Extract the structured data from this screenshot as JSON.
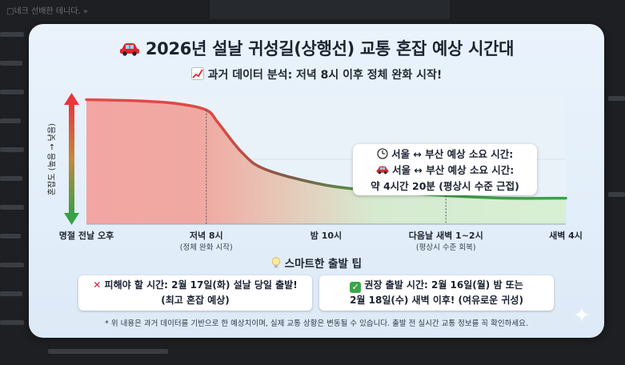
{
  "background_text": [
    "□네크 선배한 테니다. »"
  ],
  "header": {
    "title_icon": "car-icon",
    "title": "2026년 설날 귀성길(상행선) 교통 혼잡 예상 시간대",
    "subtitle_icon": "trend-chart-icon",
    "subtitle": "과거 데이터 분석: 저녁 8시 이후 정체 완화 시작!"
  },
  "chart_data": {
    "type": "area",
    "ylabel": "혼잡도 (높음 → 낮음)",
    "ylim": [
      0,
      100
    ],
    "grid": false,
    "categories": [
      "명절 전날 오후",
      "저녁 8시",
      "밤 10시",
      "다음날 새벽 1~2시",
      "새벽 4시"
    ],
    "category_notes": [
      "",
      "(정체 완화 시작)",
      "",
      "(평상시 수준 회복)",
      ""
    ],
    "x": [
      0,
      0.45,
      0.75,
      1,
      1.1,
      1.3,
      1.5,
      2,
      2.5,
      3,
      3.5,
      4
    ],
    "values": [
      96,
      95,
      93,
      88,
      78,
      55,
      42,
      30,
      25,
      22,
      20,
      20
    ],
    "colors": {
      "high": "#e8484c",
      "low": "#3aa24a",
      "line_mid": "#7a5a4a"
    }
  },
  "callout": {
    "line1_icon": "clock-icon",
    "line1": "서울 ↔ 부산 예상 소요 시간:",
    "line2_icon": "car-icon",
    "line2": "서울 ↔ 부산 예상 소요 시간:",
    "line3": "약 4시간 20분 (평상시 수준 근접)"
  },
  "tips": {
    "title_icon": "lightbulb-icon",
    "title": "스마트한 출발 팁",
    "avoid_icon": "cross-icon",
    "avoid_line1": "피해야 할 시간: 2월 17일(화) 설날 당일 출발!",
    "avoid_line2": "(최고 혼잡 예상)",
    "rec_icon": "check-icon",
    "rec_line1": "권장 출발 시간: 2월 16일(월) 밤 또는",
    "rec_line2": "2월 18일(수) 새벽 이후! (여유로운 귀성)"
  },
  "footnote": "* 위 내용은 과거 데이터를 기반으로 한 예상치이며, 실제 교통 상황은 변동될 수 있습니다. 출발 전 실시간 교통 정보를 꼭 확인하세요."
}
